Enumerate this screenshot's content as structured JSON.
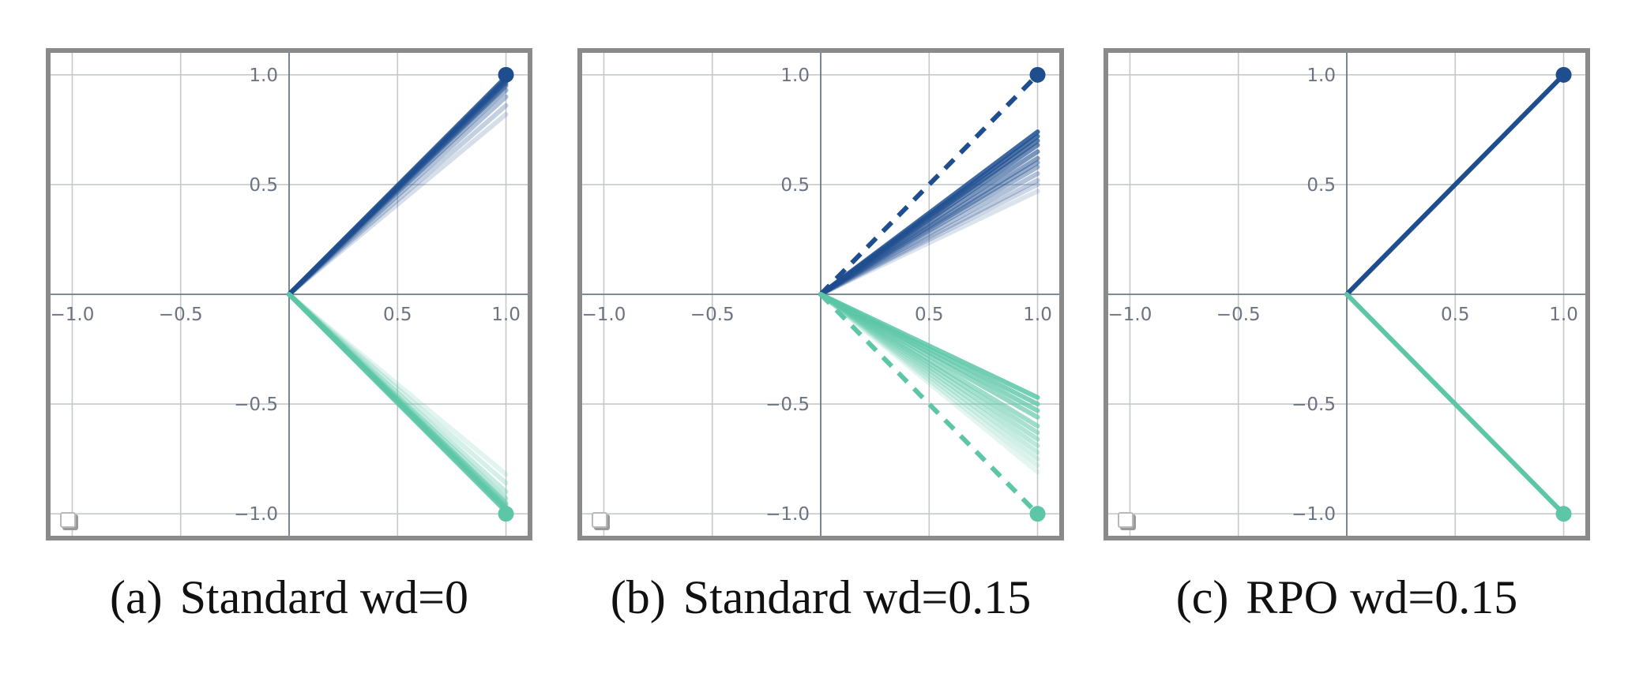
{
  "colors": {
    "class_a": "#1f4e8f",
    "class_b": "#5cc6a6",
    "grid": "#c4c9cc",
    "axis": "#6b7a86",
    "frame": "#8a8a8a"
  },
  "chart_data": [
    {
      "type": "line",
      "caption_label": "(a)",
      "caption_text": "Standard wd=0",
      "xlim": [
        -1.1,
        1.1
      ],
      "ylim": [
        -1.1,
        1.1
      ],
      "x_ticks": [
        "−1.0",
        "−0.5",
        "0.5",
        "1.0"
      ],
      "x_tick_values": [
        -1.0,
        -0.5,
        0.5,
        1.0
      ],
      "y_ticks": [
        "1.0",
        "0.5",
        "−0.5",
        "−1.0"
      ],
      "y_tick_values": [
        1.0,
        0.5,
        -0.5,
        -1.0
      ],
      "grid": true,
      "series": [
        {
          "endpoint": [
            1,
            1
          ],
          "line_endpoints_y": [
            0.99,
            0.98,
            0.97,
            0.96,
            0.95,
            0.93,
            0.9,
            0.86,
            0.82
          ],
          "target_dashed": false
        },
        {
          "endpoint": [
            1,
            -1
          ],
          "line_endpoints_y": [
            -0.99,
            -0.98,
            -0.97,
            -0.96,
            -0.95,
            -0.93,
            -0.9,
            -0.86,
            -0.82
          ],
          "target_dashed": false
        }
      ]
    },
    {
      "type": "line",
      "caption_label": "(b)",
      "caption_text": "Standard wd=0.15",
      "xlim": [
        -1.1,
        1.1
      ],
      "ylim": [
        -1.1,
        1.1
      ],
      "x_ticks": [
        "−1.0",
        "−0.5",
        "0.5",
        "1.0"
      ],
      "x_tick_values": [
        -1.0,
        -0.5,
        0.5,
        1.0
      ],
      "y_ticks": [
        "1.0",
        "0.5",
        "−0.5",
        "−1.0"
      ],
      "y_tick_values": [
        1.0,
        0.5,
        -0.5,
        -1.0
      ],
      "grid": true,
      "series": [
        {
          "endpoint": [
            1,
            1
          ],
          "line_endpoints_y": [
            0.74,
            0.72,
            0.7,
            0.68,
            0.65,
            0.62,
            0.6,
            0.58,
            0.55,
            0.52,
            0.5,
            0.47
          ],
          "target_dashed": true
        },
        {
          "endpoint": [
            1,
            -1
          ],
          "line_endpoints_y": [
            -0.47,
            -0.5,
            -0.53,
            -0.56,
            -0.6,
            -0.63,
            -0.66,
            -0.69,
            -0.72,
            -0.75,
            -0.78,
            -0.81
          ],
          "target_dashed": true
        }
      ]
    },
    {
      "type": "line",
      "caption_label": "(c)",
      "caption_text": "RPO wd=0.15",
      "xlim": [
        -1.1,
        1.1
      ],
      "ylim": [
        -1.1,
        1.1
      ],
      "x_ticks": [
        "−1.0",
        "−0.5",
        "0.5",
        "1.0"
      ],
      "x_tick_values": [
        -1.0,
        -0.5,
        0.5,
        1.0
      ],
      "y_ticks": [
        "1.0",
        "0.5",
        "−0.5",
        "−1.0"
      ],
      "y_tick_values": [
        1.0,
        0.5,
        -0.5,
        -1.0
      ],
      "grid": true,
      "series": [
        {
          "endpoint": [
            1,
            1
          ],
          "line_endpoints_y": [
            1.0
          ],
          "target_dashed": false
        },
        {
          "endpoint": [
            1,
            -1
          ],
          "line_endpoints_y": [
            -1.0
          ],
          "target_dashed": false
        }
      ]
    }
  ]
}
